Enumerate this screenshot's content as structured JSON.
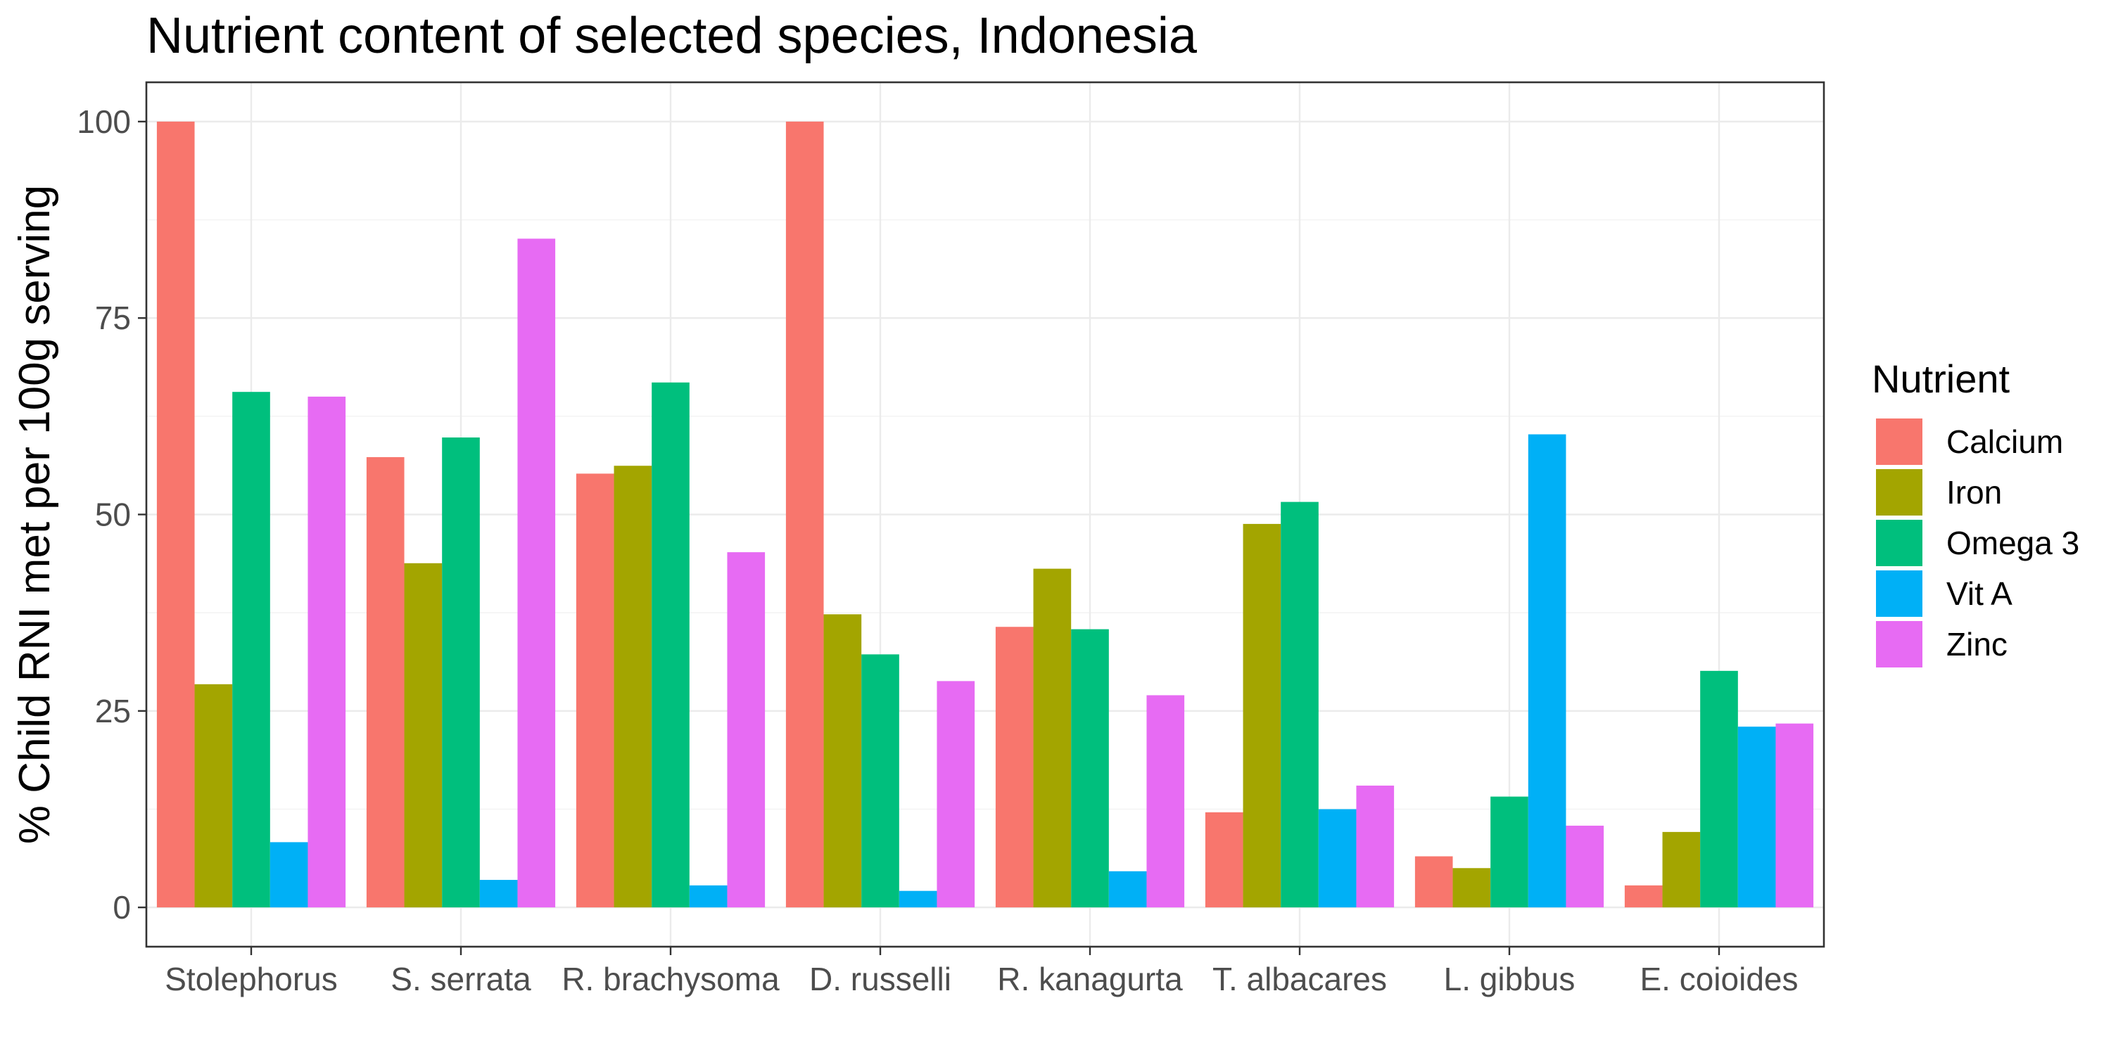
{
  "chart_data": {
    "type": "bar",
    "title": "Nutrient content of selected species, Indonesia",
    "xlabel": "",
    "ylabel": "% Child RNI met per 100g serving",
    "ylim": [
      -5,
      105
    ],
    "yticks": [
      0,
      25,
      50,
      75,
      100
    ],
    "grid": true,
    "legend": {
      "title": "Nutrient",
      "position": "right"
    },
    "categories": [
      "Stolephorus",
      "S. serrata",
      "R. brachysoma",
      "D. russelli",
      "R. kanagurta",
      "T. albacares",
      "L. gibbus",
      "E. coioides"
    ],
    "series": [
      {
        "name": "Calcium",
        "color": "#F8766D",
        "values": [
          100,
          57.3,
          55.2,
          100,
          35.7,
          12.1,
          6.5,
          2.8
        ]
      },
      {
        "name": "Iron",
        "color": "#A3A500",
        "values": [
          28.4,
          43.8,
          56.2,
          37.3,
          43.1,
          48.8,
          5.0,
          9.6
        ]
      },
      {
        "name": "Omega 3",
        "color": "#00BF7D",
        "values": [
          65.6,
          59.8,
          66.8,
          32.2,
          35.4,
          51.6,
          14.1,
          30.1
        ]
      },
      {
        "name": "Vit A",
        "color": "#00B0F6",
        "values": [
          8.3,
          3.5,
          2.8,
          2.1,
          4.6,
          12.5,
          60.2,
          23.0
        ]
      },
      {
        "name": "Zinc",
        "color": "#E76BF3",
        "values": [
          65.0,
          85.1,
          45.2,
          28.8,
          27.0,
          15.5,
          10.4,
          23.4
        ]
      }
    ]
  }
}
